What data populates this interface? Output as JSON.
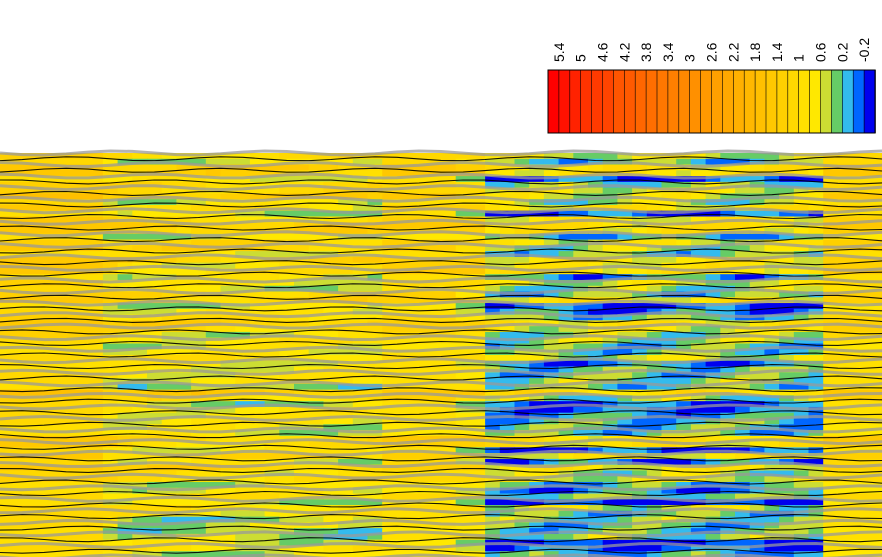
{
  "chart_data": {
    "type": "heatmap",
    "style": "filled-contour",
    "title": "",
    "xlabel": "",
    "ylabel": "",
    "colorbar": {
      "orientation": "horizontal",
      "placement": "top-right",
      "label_rotation": "vertical",
      "tick_labels": [
        "5.4",
        "5",
        "4.6",
        "4.2",
        "3.8",
        "3.4",
        "3",
        "2.6",
        "2.2",
        "1.8",
        "1.4",
        "1",
        "0.6",
        "0.2",
        "-0.2"
      ],
      "range": [
        -0.4,
        5.6
      ],
      "levels": [
        5.6,
        5.4,
        5.2,
        5.0,
        4.8,
        4.6,
        4.4,
        4.2,
        4.0,
        3.8,
        3.6,
        3.4,
        3.2,
        3.0,
        2.8,
        2.6,
        2.4,
        2.2,
        2.0,
        1.8,
        1.6,
        1.4,
        1.2,
        1.0,
        0.8,
        0.6,
        0.4,
        0.2,
        0.0,
        -0.2,
        -0.4
      ],
      "colors": [
        "#ff0000",
        "#ff1100",
        "#ff2200",
        "#ff3300",
        "#ff3a00",
        "#ff4400",
        "#ff5500",
        "#ff5a00",
        "#ff6600",
        "#ff6e00",
        "#ff7700",
        "#ff7f00",
        "#ff8800",
        "#ff9000",
        "#ff9900",
        "#ffa000",
        "#ffa800",
        "#ffb000",
        "#ffb800",
        "#ffc000",
        "#ffc800",
        "#ffd000",
        "#ffd800",
        "#ffe000",
        "#ffe800",
        "#ccdd33",
        "#66cc66",
        "#33bbee",
        "#0066ff",
        "#0000ee"
      ]
    },
    "field": {
      "x_range": [
        0,
        1
      ],
      "y_range": [
        0,
        1
      ],
      "value_range": [
        -0.3,
        2.0
      ],
      "description_regions": [
        {
          "region": "left",
          "dominant_range": [
            1.0,
            1.6
          ]
        },
        {
          "region": "center-left",
          "dominant_range": [
            0.2,
            1.4
          ]
        },
        {
          "region": "center",
          "dominant_range": [
            0.8,
            1.4
          ]
        },
        {
          "region": "center-right",
          "dominant_range": [
            -0.2,
            1.2
          ]
        },
        {
          "region": "right-edge",
          "dominant_range": [
            0.8,
            1.2
          ]
        }
      ]
    },
    "contour_line_color": "#000000",
    "minor_contour_line_color": "#999999",
    "grid": false,
    "legend": "colorbar"
  }
}
